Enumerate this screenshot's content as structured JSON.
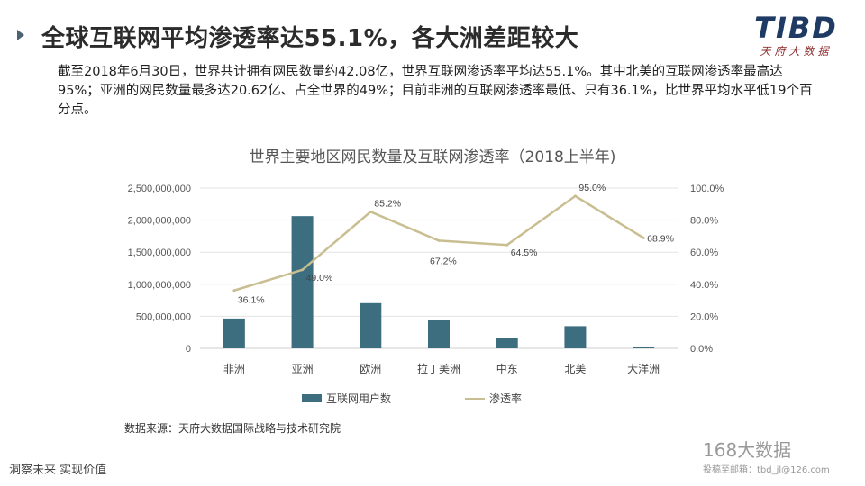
{
  "header": {
    "title": "全球互联网平均渗透率达55.1%，各大洲差距较大",
    "logo_text": "TIBD",
    "logo_subtext": "天府大数据"
  },
  "description": "截至2018年6月30日，世界共计拥有网民数量约42.08亿，世界互联网渗透率平均达55.1%。其中北美的互联网渗透率最高达95%；亚洲的网民数量最多达20.62亿、占全世界的49%；目前非洲的互联网渗透率最低、只有36.1%，比世界平均水平低19个百分点。",
  "chart_data": {
    "type": "bar+line",
    "title": "世界主要地区网民数量及互联网渗透率（2018上半年)",
    "categories": [
      "非洲",
      "亚洲",
      "欧洲",
      "拉丁美洲",
      "中东",
      "北美",
      "大洋洲"
    ],
    "series": [
      {
        "name": "互联网用户数",
        "type": "bar",
        "axis": "left",
        "color": "#3c6e80",
        "values": [
          464923116,
          2062197366,
          705064923,
          438248284,
          164037259,
          345660847,
          28439277
        ]
      },
      {
        "name": "渗透率",
        "type": "line",
        "axis": "right",
        "color": "#c9be91",
        "values": [
          36.1,
          49.0,
          85.2,
          67.2,
          64.5,
          95.0,
          68.9
        ],
        "labels": [
          "36.1%",
          "49.0%",
          "85.2%",
          "67.2%",
          "64.5%",
          "95.0%",
          "68.9%"
        ]
      }
    ],
    "y_left": {
      "range": [
        0,
        2500000000
      ],
      "ticks": [
        "0",
        "500,000,000",
        "1,000,000,000",
        "1,500,000,000",
        "2,000,000,000",
        "2,500,000,000"
      ]
    },
    "y_right": {
      "range": [
        0,
        100
      ],
      "ticks": [
        "0.0%",
        "20.0%",
        "40.0%",
        "60.0%",
        "80.0%",
        "100.0%"
      ]
    },
    "grid": true,
    "legend_position": "bottom"
  },
  "source": "数据来源：天府大数据国际战略与技术研究院",
  "footer": {
    "slogan": "洞察未来 实现价值",
    "watermark": "168大数据",
    "watermark_sub": "投稿至邮箱：tbd_jl@126.com"
  }
}
